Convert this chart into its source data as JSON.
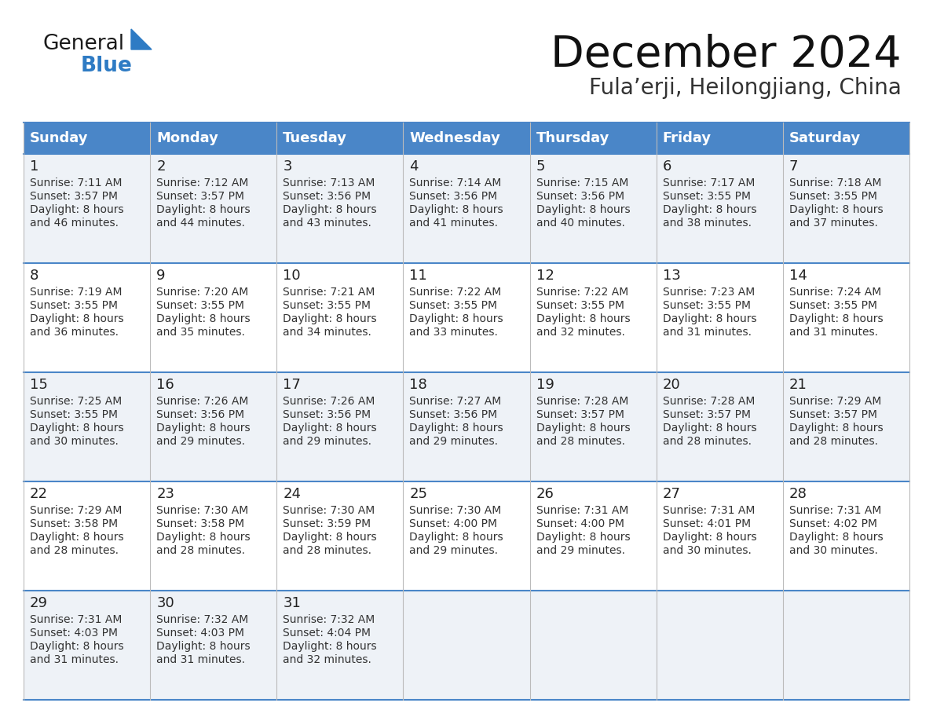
{
  "title": "December 2024",
  "subtitle": "Fula’erji, Heilongjiang, China",
  "days_of_week": [
    "Sunday",
    "Monday",
    "Tuesday",
    "Wednesday",
    "Thursday",
    "Friday",
    "Saturday"
  ],
  "header_bg": "#4a86c8",
  "header_text": "#ffffff",
  "row_bg_odd": "#eef2f7",
  "row_bg_even": "#ffffff",
  "cell_text_color": "#333333",
  "day_num_color": "#222222",
  "grid_color_h": "#4a86c8",
  "grid_color_v": "#bbbbbb",
  "calendar_data": [
    [
      {
        "day": 1,
        "sunrise": "7:11 AM",
        "sunset": "3:57 PM",
        "daylight_suffix": "46 minutes."
      },
      {
        "day": 2,
        "sunrise": "7:12 AM",
        "sunset": "3:57 PM",
        "daylight_suffix": "44 minutes."
      },
      {
        "day": 3,
        "sunrise": "7:13 AM",
        "sunset": "3:56 PM",
        "daylight_suffix": "43 minutes."
      },
      {
        "day": 4,
        "sunrise": "7:14 AM",
        "sunset": "3:56 PM",
        "daylight_suffix": "41 minutes."
      },
      {
        "day": 5,
        "sunrise": "7:15 AM",
        "sunset": "3:56 PM",
        "daylight_suffix": "40 minutes."
      },
      {
        "day": 6,
        "sunrise": "7:17 AM",
        "sunset": "3:55 PM",
        "daylight_suffix": "38 minutes."
      },
      {
        "day": 7,
        "sunrise": "7:18 AM",
        "sunset": "3:55 PM",
        "daylight_suffix": "37 minutes."
      }
    ],
    [
      {
        "day": 8,
        "sunrise": "7:19 AM",
        "sunset": "3:55 PM",
        "daylight_suffix": "36 minutes."
      },
      {
        "day": 9,
        "sunrise": "7:20 AM",
        "sunset": "3:55 PM",
        "daylight_suffix": "35 minutes."
      },
      {
        "day": 10,
        "sunrise": "7:21 AM",
        "sunset": "3:55 PM",
        "daylight_suffix": "34 minutes."
      },
      {
        "day": 11,
        "sunrise": "7:22 AM",
        "sunset": "3:55 PM",
        "daylight_suffix": "33 minutes."
      },
      {
        "day": 12,
        "sunrise": "7:22 AM",
        "sunset": "3:55 PM",
        "daylight_suffix": "32 minutes."
      },
      {
        "day": 13,
        "sunrise": "7:23 AM",
        "sunset": "3:55 PM",
        "daylight_suffix": "31 minutes."
      },
      {
        "day": 14,
        "sunrise": "7:24 AM",
        "sunset": "3:55 PM",
        "daylight_suffix": "31 minutes."
      }
    ],
    [
      {
        "day": 15,
        "sunrise": "7:25 AM",
        "sunset": "3:55 PM",
        "daylight_suffix": "30 minutes."
      },
      {
        "day": 16,
        "sunrise": "7:26 AM",
        "sunset": "3:56 PM",
        "daylight_suffix": "29 minutes."
      },
      {
        "day": 17,
        "sunrise": "7:26 AM",
        "sunset": "3:56 PM",
        "daylight_suffix": "29 minutes."
      },
      {
        "day": 18,
        "sunrise": "7:27 AM",
        "sunset": "3:56 PM",
        "daylight_suffix": "29 minutes."
      },
      {
        "day": 19,
        "sunrise": "7:28 AM",
        "sunset": "3:57 PM",
        "daylight_suffix": "28 minutes."
      },
      {
        "day": 20,
        "sunrise": "7:28 AM",
        "sunset": "3:57 PM",
        "daylight_suffix": "28 minutes."
      },
      {
        "day": 21,
        "sunrise": "7:29 AM",
        "sunset": "3:57 PM",
        "daylight_suffix": "28 minutes."
      }
    ],
    [
      {
        "day": 22,
        "sunrise": "7:29 AM",
        "sunset": "3:58 PM",
        "daylight_suffix": "28 minutes."
      },
      {
        "day": 23,
        "sunrise": "7:30 AM",
        "sunset": "3:58 PM",
        "daylight_suffix": "28 minutes."
      },
      {
        "day": 24,
        "sunrise": "7:30 AM",
        "sunset": "3:59 PM",
        "daylight_suffix": "28 minutes."
      },
      {
        "day": 25,
        "sunrise": "7:30 AM",
        "sunset": "4:00 PM",
        "daylight_suffix": "29 minutes."
      },
      {
        "day": 26,
        "sunrise": "7:31 AM",
        "sunset": "4:00 PM",
        "daylight_suffix": "29 minutes."
      },
      {
        "day": 27,
        "sunrise": "7:31 AM",
        "sunset": "4:01 PM",
        "daylight_suffix": "30 minutes."
      },
      {
        "day": 28,
        "sunrise": "7:31 AM",
        "sunset": "4:02 PM",
        "daylight_suffix": "30 minutes."
      }
    ],
    [
      {
        "day": 29,
        "sunrise": "7:31 AM",
        "sunset": "4:03 PM",
        "daylight_suffix": "31 minutes."
      },
      {
        "day": 30,
        "sunrise": "7:32 AM",
        "sunset": "4:03 PM",
        "daylight_suffix": "31 minutes."
      },
      {
        "day": 31,
        "sunrise": "7:32 AM",
        "sunset": "4:04 PM",
        "daylight_suffix": "32 minutes."
      },
      null,
      null,
      null,
      null
    ]
  ],
  "logo_general_color": "#1a1a1a",
  "logo_blue_color": "#2e7bc4",
  "logo_triangle_color": "#2e7bc4",
  "title_fontsize": 40,
  "subtitle_fontsize": 20,
  "header_fontsize": 13,
  "day_num_fontsize": 13,
  "cell_fontsize": 10
}
